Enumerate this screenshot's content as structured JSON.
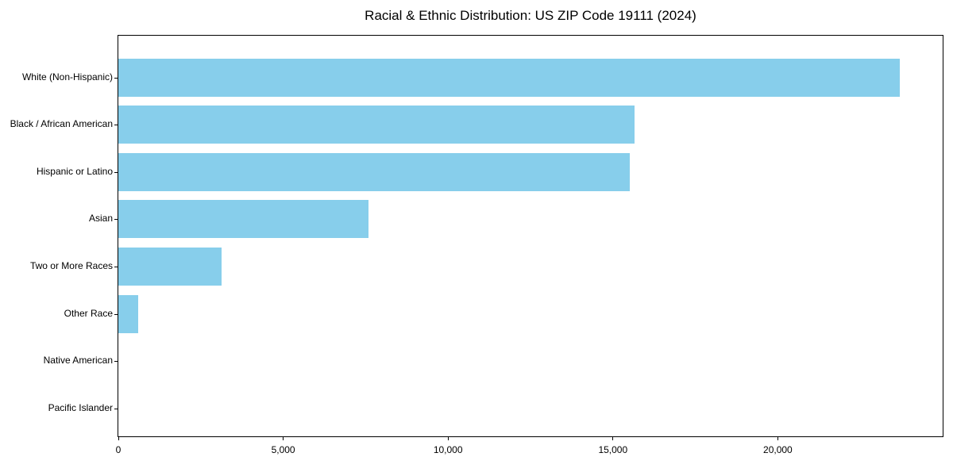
{
  "chart_data": {
    "type": "bar",
    "orientation": "horizontal",
    "title": "Racial & Ethnic Distribution: US ZIP Code 19111 (2024)",
    "xlabel": "",
    "ylabel": "",
    "categories": [
      "White (Non-Hispanic)",
      "Black / African American",
      "Hispanic or Latino",
      "Asian",
      "Two or More Races",
      "Other Race",
      "Native American",
      "Pacific Islander"
    ],
    "values": [
      23700,
      15650,
      15520,
      7580,
      3130,
      610,
      0,
      0
    ],
    "xlim": [
      0,
      25000
    ],
    "x_ticks": [
      {
        "value": 0,
        "label": "0"
      },
      {
        "value": 5000,
        "label": "5,000"
      },
      {
        "value": 10000,
        "label": "10,000"
      },
      {
        "value": 15000,
        "label": "15,000"
      },
      {
        "value": 20000,
        "label": "20,000"
      }
    ],
    "bar_color": "#87CEEB",
    "axis_color": "#000000",
    "background_color": "#ffffff",
    "grid": false,
    "legend": null
  }
}
